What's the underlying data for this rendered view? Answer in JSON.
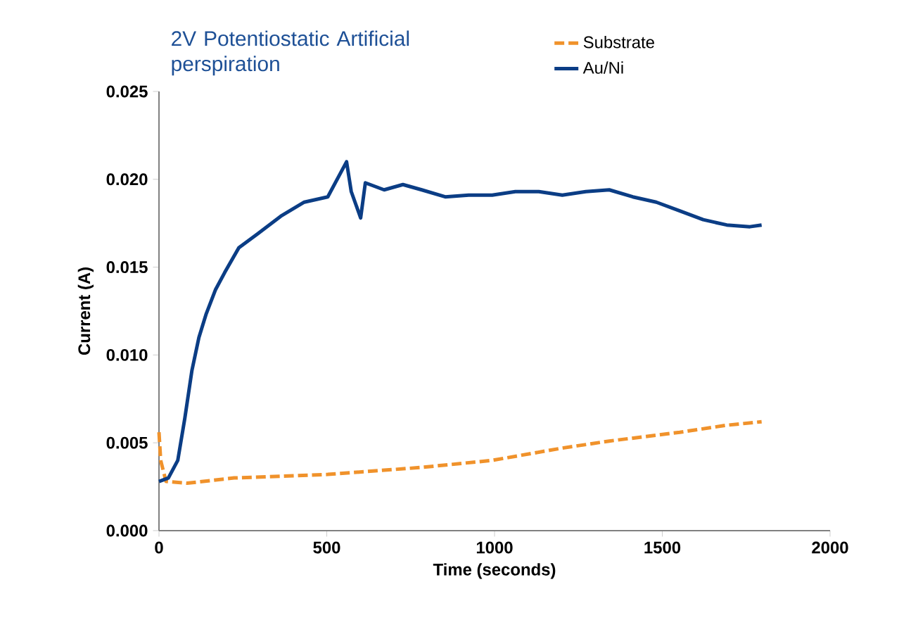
{
  "chart_data": {
    "type": "line",
    "title": "2V Potentiostatic Artificial perspiration",
    "xlabel": "Time (seconds)",
    "ylabel": "Current (A)",
    "xlim": [
      0,
      2000
    ],
    "xticks": [
      0,
      500,
      1000,
      1500,
      2000
    ],
    "ylim": [
      0,
      0.025
    ],
    "yticks": [
      {
        "value": 0,
        "label": "0.000"
      },
      0.005,
      {
        "value": 0.01,
        "label": "0.010"
      },
      0.015,
      {
        "value": 0.02,
        "label": "0.020"
      },
      0.025
    ],
    "legend": "top right",
    "grid": false,
    "marker": "none",
    "series": [
      {
        "name": "Substrate",
        "color": "#f0922b",
        "line_style": "dashed",
        "x": [
          0,
          5,
          21,
          84,
          224,
          503,
          783,
          993,
          1202,
          1342,
          1552,
          1692,
          1796
        ],
        "values": [
          0.0056,
          0.004,
          0.0028,
          0.0027,
          0.003,
          0.0032,
          0.0036,
          0.004,
          0.0047,
          0.0051,
          0.0056,
          0.006,
          0.0062
        ]
      },
      {
        "name": "Au/Ni",
        "color": "#0b3d85",
        "line_style": "solid",
        "x": [
          0,
          28,
          56,
          77,
          98,
          119,
          140,
          168,
          196,
          238,
          294,
          363,
          433,
          503,
          559,
          573,
          601,
          615,
          671,
          727,
          783,
          853,
          923,
          993,
          1062,
          1132,
          1202,
          1272,
          1342,
          1412,
          1482,
          1552,
          1622,
          1692,
          1761,
          1796
        ],
        "values": [
          0.0028,
          0.003,
          0.004,
          0.0064,
          0.0091,
          0.011,
          0.0123,
          0.0137,
          0.0147,
          0.0161,
          0.0169,
          0.0179,
          0.0187,
          0.019,
          0.021,
          0.0193,
          0.0178,
          0.0198,
          0.0194,
          0.0197,
          0.0194,
          0.019,
          0.0191,
          0.0191,
          0.0193,
          0.0193,
          0.0191,
          0.0193,
          0.0194,
          0.019,
          0.0187,
          0.0182,
          0.0177,
          0.0174,
          0.0173,
          0.0174
        ]
      }
    ]
  }
}
